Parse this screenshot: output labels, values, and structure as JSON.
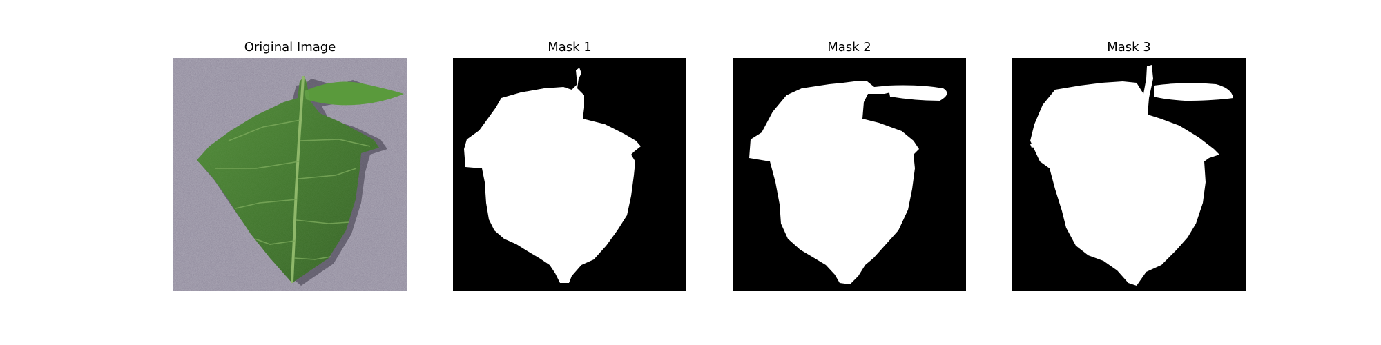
{
  "panels": [
    {
      "title": "Original Image",
      "content": "leaf photograph"
    },
    {
      "title": "Mask 1",
      "content": "binary segmentation mask"
    },
    {
      "title": "Mask 2",
      "content": "binary segmentation mask"
    },
    {
      "title": "Mask 3",
      "content": "binary segmentation mask"
    }
  ],
  "colors": {
    "background": "#ffffff",
    "mask_background": "#000000",
    "mask_foreground": "#ffffff",
    "leaf_dark": "#2f5a1f",
    "leaf_mid": "#4f8a35",
    "leaf_light": "#7fb458",
    "surface": "#8d879a"
  }
}
